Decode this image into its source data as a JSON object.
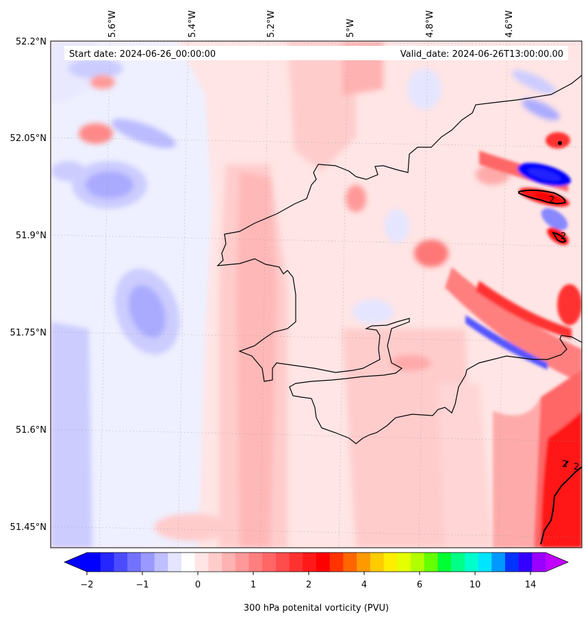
{
  "header": {
    "start_date": "Start date: 2024-06-26_00:00:00",
    "valid_date": "Valid_date: 2024-06-26T13:00:00.00"
  },
  "axes": {
    "lon_labels": [
      "5.6°W",
      "5.4°W",
      "5.2°W",
      "5°W",
      "4.8°W",
      "4.6°W"
    ],
    "lat_labels": [
      "52.2°N",
      "52.05°N",
      "51.9°N",
      "51.75°N",
      "51.6°N",
      "51.45°N"
    ]
  },
  "contour_labels": [
    "2",
    "2",
    "2",
    "2"
  ],
  "colorbar": {
    "title": "300 hPa potenital vorticity (PVU)",
    "tick_labels": [
      "−2",
      "−1",
      "0",
      "1",
      "2",
      "4",
      "6",
      "10",
      "14"
    ],
    "colors": [
      "#0000ff",
      "#2626ff",
      "#4c4cff",
      "#7272ff",
      "#9999ff",
      "#bfbfff",
      "#e5e5ff",
      "#ffffff",
      "#ffe5e5",
      "#ffcccc",
      "#ffb2b2",
      "#ff9999",
      "#ff7f7f",
      "#ff6666",
      "#ff4c4c",
      "#ff3232",
      "#ff1919",
      "#ff0000",
      "#ff3300",
      "#ff6600",
      "#ff9900",
      "#ffcc00",
      "#ffee00",
      "#e5ff00",
      "#b2ff00",
      "#66ff00",
      "#00ff33",
      "#00ff88",
      "#00ffcc",
      "#00e5ff",
      "#0099ff",
      "#0033ff",
      "#3300ff",
      "#9900ff"
    ],
    "under_color": "#0000ff",
    "over_color": "#c000ff"
  }
}
